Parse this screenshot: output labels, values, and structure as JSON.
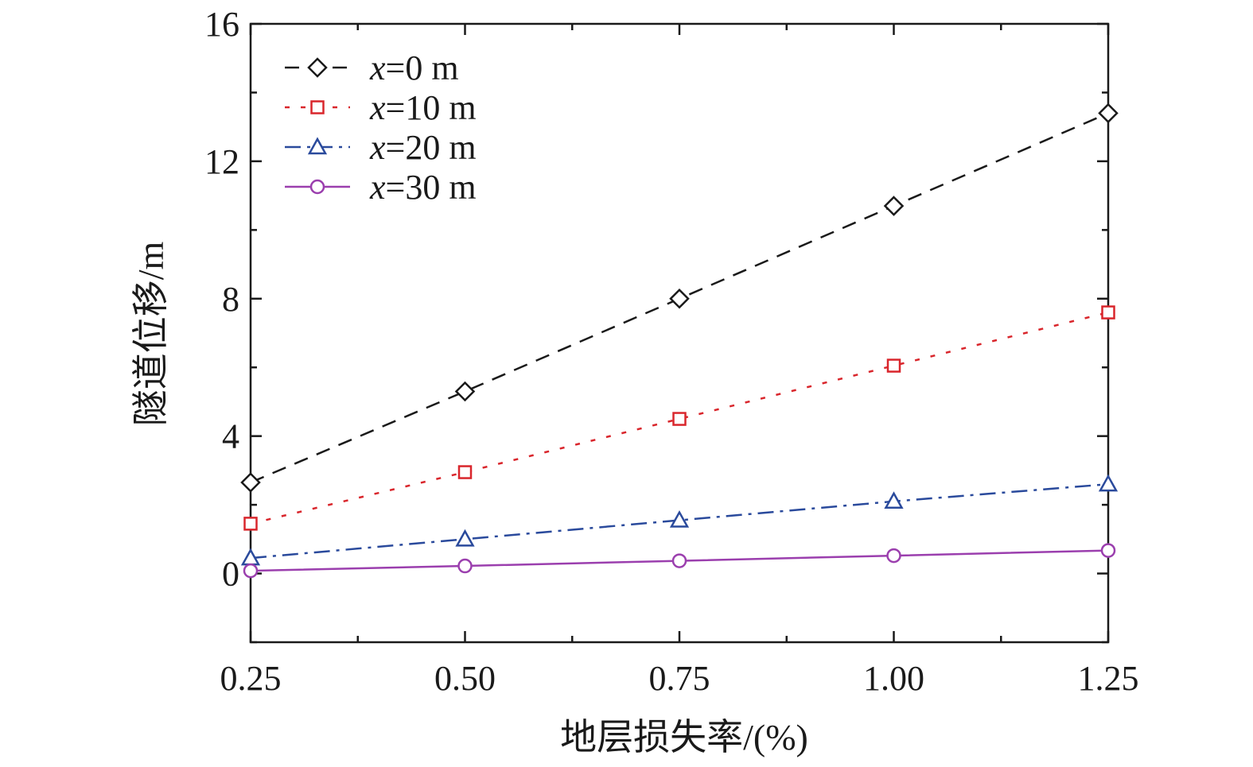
{
  "chart_data": {
    "type": "line",
    "xlabel": "地层损失率/(%)",
    "ylabel": "隧道位移/m",
    "xlim": [
      0.25,
      1.25
    ],
    "ylim": [
      -2,
      16
    ],
    "x_ticks": [
      "0.25",
      "0.50",
      "0.75",
      "1.00",
      "1.25"
    ],
    "y_ticks": [
      "0",
      "4",
      "8",
      "12",
      "16"
    ],
    "grid": false,
    "legend_position": "top-left",
    "x": [
      0.25,
      0.5,
      0.75,
      1.0,
      1.25
    ],
    "series": [
      {
        "name_var": "x",
        "name_rest": "=0 m",
        "values": [
          2.65,
          5.3,
          8.0,
          10.7,
          13.4
        ],
        "color": "#1a1a1a",
        "marker": "diamond",
        "dash": "18,12"
      },
      {
        "name_var": "x",
        "name_rest": "=10 m",
        "values": [
          1.45,
          2.95,
          4.5,
          6.05,
          7.6
        ],
        "color": "#d9262c",
        "marker": "square",
        "dash": "6,14"
      },
      {
        "name_var": "x",
        "name_rest": "=20 m",
        "values": [
          0.45,
          1.0,
          1.55,
          2.1,
          2.6
        ],
        "color": "#2a4a9c",
        "marker": "triangle",
        "dash": "20,8,4,8"
      },
      {
        "name_var": "x",
        "name_rest": "=30 m",
        "values": [
          0.08,
          0.22,
          0.37,
          0.52,
          0.67
        ],
        "color": "#9b3fae",
        "marker": "circle",
        "dash": ""
      }
    ]
  }
}
